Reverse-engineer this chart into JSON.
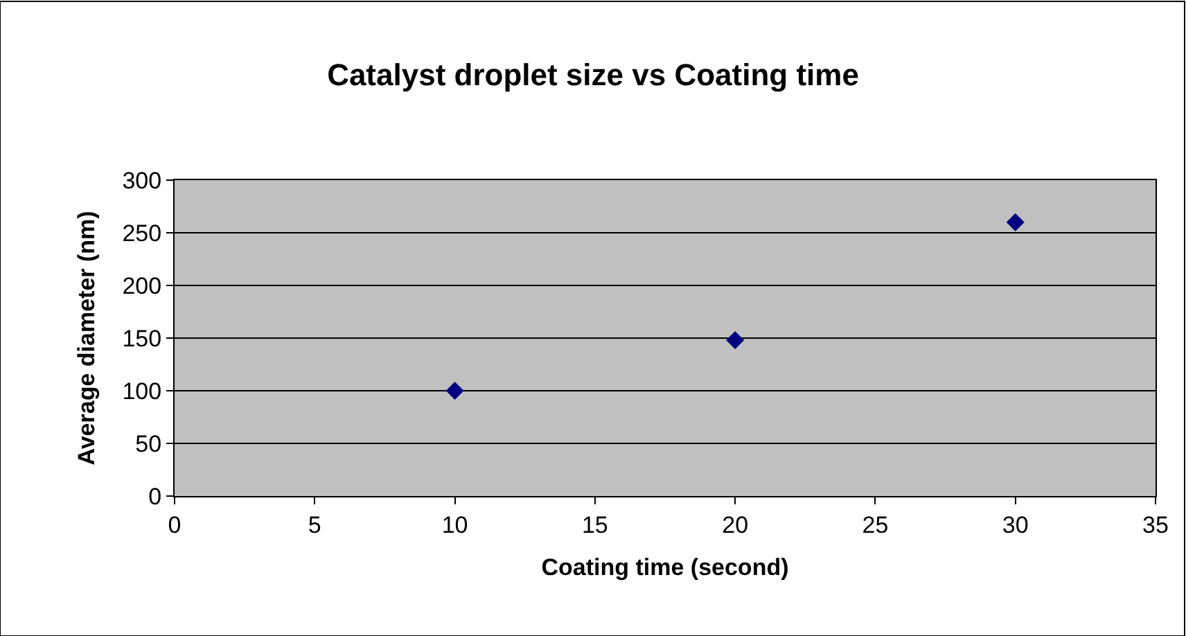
{
  "chart_data": {
    "type": "scatter",
    "title": "Catalyst droplet size vs Coating time",
    "xlabel": "Coating time (second)",
    "ylabel": "Average diameter (nm)",
    "x": [
      10,
      20,
      30
    ],
    "series": [
      {
        "color": "#000080",
        "values": [
          100,
          148,
          260
        ]
      }
    ],
    "xlim": [
      0,
      35
    ],
    "xticks": [
      0,
      5,
      10,
      15,
      20,
      25,
      30,
      35
    ],
    "ylim": [
      0,
      300
    ],
    "yticks": [
      0,
      50,
      100,
      150,
      200,
      250,
      300
    ],
    "grid": "y",
    "marker": "diamond"
  }
}
